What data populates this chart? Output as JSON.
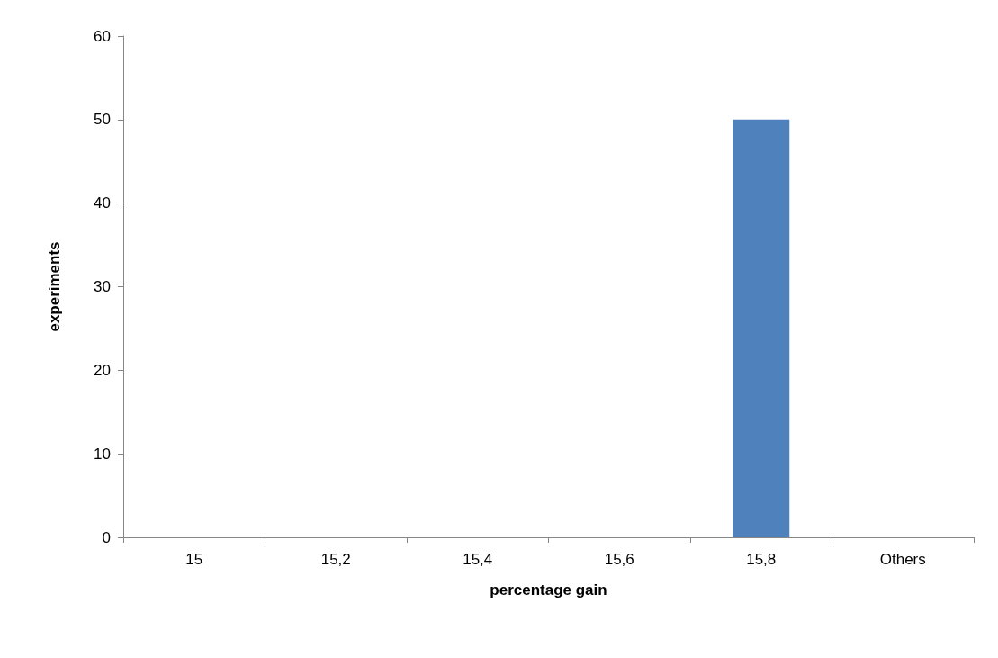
{
  "chart_data": {
    "type": "bar",
    "xlabel": "percentage gain",
    "ylabel": "experiments",
    "categories": [
      "15",
      "15,2",
      "15,4",
      "15,6",
      "15,8",
      "Others"
    ],
    "values": [
      0,
      0,
      0,
      0,
      50,
      0
    ],
    "color": "#4f81bd",
    "ylim": [
      0,
      60
    ],
    "yticks": [
      0,
      10,
      20,
      30,
      40,
      50,
      60
    ],
    "grid": false
  }
}
